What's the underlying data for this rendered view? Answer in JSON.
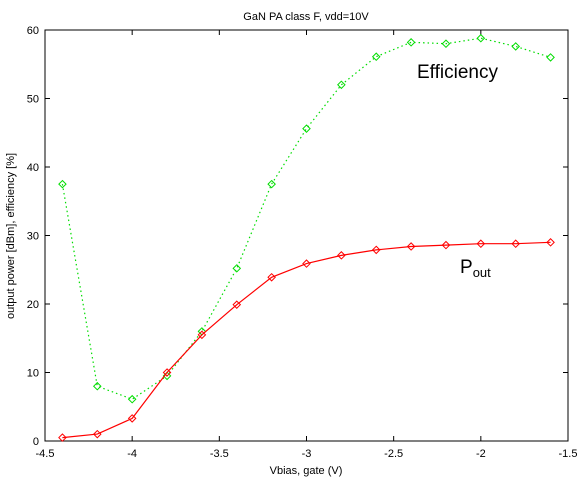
{
  "chart_data": {
    "type": "line",
    "title": "GaN PA class F, vdd=10V",
    "xlabel": "Vbias, gate (V)",
    "ylabel": "output power [dBm], efficiency [%]",
    "xlim": [
      -4.5,
      -1.5
    ],
    "ylim": [
      0,
      60
    ],
    "xticks": [
      -4.5,
      -4,
      -3.5,
      -3,
      -2.5,
      -2,
      -1.5
    ],
    "xtick_labels": [
      "-4.5",
      "-4",
      "-3.5",
      "-3",
      "-2.5",
      "-2",
      "-1.5"
    ],
    "yticks": [
      0,
      10,
      20,
      30,
      40,
      50,
      60
    ],
    "ytick_labels": [
      "0",
      "10",
      "20",
      "30",
      "40",
      "50",
      "60"
    ],
    "grid": false,
    "legend": "none",
    "series": [
      {
        "name": "Efficiency",
        "color": "#00dd00",
        "line_style": "dotted",
        "marker": "diamond",
        "x": [
          -4.4,
          -4.2,
          -4.0,
          -3.8,
          -3.6,
          -3.4,
          -3.2,
          -3.0,
          -2.8,
          -2.6,
          -2.4,
          -2.2,
          -2.0,
          -1.8,
          -1.6
        ],
        "y": [
          37.5,
          8.0,
          6.1,
          9.5,
          16.0,
          25.2,
          37.5,
          45.6,
          52.0,
          56.1,
          58.2,
          58.0,
          58.8,
          57.6,
          56.0
        ]
      },
      {
        "name": "Pout",
        "color": "#ff0000",
        "line_style": "solid",
        "marker": "diamond",
        "x": [
          -4.4,
          -4.2,
          -4.0,
          -3.8,
          -3.6,
          -3.4,
          -3.2,
          -3.0,
          -2.8,
          -2.6,
          -2.4,
          -2.2,
          -2.0,
          -1.8,
          -1.6
        ],
        "y": [
          0.5,
          1.0,
          3.3,
          10.0,
          15.5,
          19.9,
          23.9,
          25.9,
          27.1,
          27.9,
          28.4,
          28.6,
          28.8,
          28.8,
          29.0
        ]
      }
    ],
    "annotations": {
      "efficiency_label": "Efficiency",
      "pout_main": "P",
      "pout_sub": "out"
    }
  }
}
